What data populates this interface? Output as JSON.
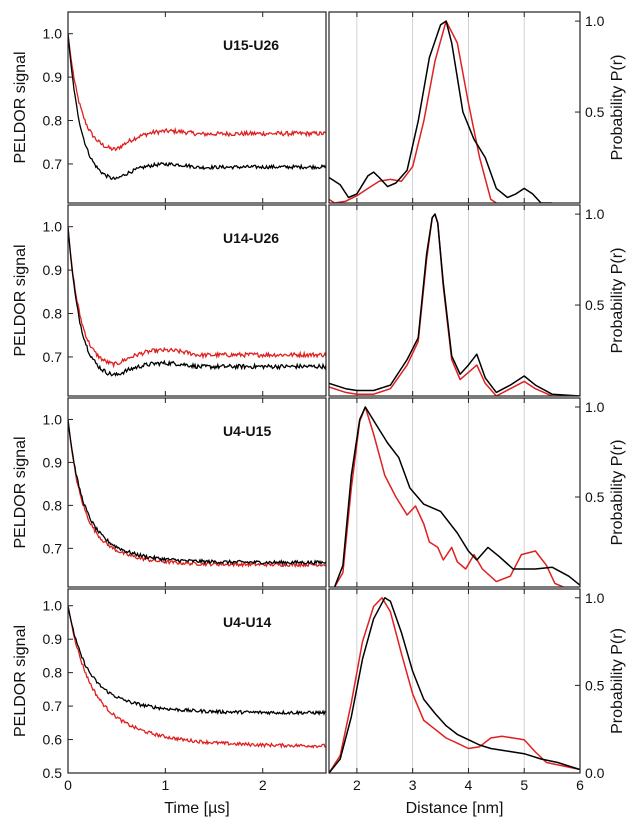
{
  "chart_data": [
    {
      "type": "line",
      "panel": "time",
      "row": 0,
      "label": "U15-U26",
      "xlabel": "",
      "ylabel": "PELDOR signal",
      "xlim": [
        0,
        2.65
      ],
      "ylim": [
        0.61,
        1.05
      ],
      "yticks": [
        0.7,
        0.8,
        0.9,
        1.0
      ],
      "yticklabels": [
        "0.7",
        "0.8",
        "0.9",
        "1.0"
      ],
      "xticks": [
        0,
        1,
        2
      ],
      "xticklabels": [],
      "series": [
        {
          "color": "#e02020",
          "shape": "decay",
          "start": 1.0,
          "floor": 0.725,
          "bump": 0.02,
          "plateau": 0.77,
          "rate": 7.5,
          "noise": 0.005
        },
        {
          "color": "#000000",
          "shape": "decay",
          "start": 1.0,
          "floor": 0.655,
          "bump": 0.02,
          "plateau": 0.693,
          "rate": 7.5,
          "noise": 0.004
        }
      ]
    },
    {
      "type": "line",
      "panel": "distance",
      "row": 0,
      "xlabel": "",
      "ylabel": "Probability P(r)",
      "xlim": [
        1.5,
        6
      ],
      "ylim": [
        0,
        1.05
      ],
      "yticks": [
        0.5,
        1.0
      ],
      "yticklabels": [
        "0.5",
        "1.0"
      ],
      "xticks": [
        2,
        3,
        4,
        5
      ],
      "xticklabels": [],
      "series": [
        {
          "color": "#e02020",
          "points": [
            [
              1.5,
              0.02
            ],
            [
              1.6,
              0.0
            ],
            [
              1.8,
              0.01
            ],
            [
              2.0,
              0.04
            ],
            [
              2.2,
              0.08
            ],
            [
              2.4,
              0.12
            ],
            [
              2.6,
              0.13
            ],
            [
              2.8,
              0.12
            ],
            [
              3.0,
              0.2
            ],
            [
              3.2,
              0.45
            ],
            [
              3.4,
              0.78
            ],
            [
              3.6,
              1.0
            ],
            [
              3.8,
              0.88
            ],
            [
              4.0,
              0.55
            ],
            [
              4.2,
              0.25
            ],
            [
              4.4,
              0.02
            ],
            [
              4.5,
              0.0
            ]
          ]
        },
        {
          "color": "#000000",
          "points": [
            [
              1.5,
              0.14
            ],
            [
              1.7,
              0.1
            ],
            [
              1.85,
              0.03
            ],
            [
              2.0,
              0.05
            ],
            [
              2.2,
              0.15
            ],
            [
              2.3,
              0.17
            ],
            [
              2.4,
              0.14
            ],
            [
              2.55,
              0.09
            ],
            [
              2.7,
              0.11
            ],
            [
              2.9,
              0.18
            ],
            [
              3.1,
              0.45
            ],
            [
              3.3,
              0.8
            ],
            [
              3.5,
              0.98
            ],
            [
              3.6,
              1.0
            ],
            [
              3.7,
              0.88
            ],
            [
              3.9,
              0.5
            ],
            [
              4.1,
              0.35
            ],
            [
              4.3,
              0.25
            ],
            [
              4.5,
              0.08
            ],
            [
              4.7,
              0.03
            ],
            [
              4.85,
              0.05
            ],
            [
              5.0,
              0.08
            ],
            [
              5.15,
              0.05
            ],
            [
              5.3,
              0.0
            ],
            [
              5.5,
              0.0
            ]
          ]
        }
      ]
    },
    {
      "type": "line",
      "panel": "time",
      "row": 1,
      "label": "U14-U26",
      "xlabel": "",
      "ylabel": "PELDOR signal",
      "xlim": [
        0,
        2.65
      ],
      "ylim": [
        0.61,
        1.05
      ],
      "yticks": [
        0.7,
        0.8,
        0.9,
        1.0
      ],
      "yticklabels": [
        "0.7",
        "0.8",
        "0.9",
        "1.0"
      ],
      "xticks": [
        0,
        1,
        2
      ],
      "xticklabels": [],
      "series": [
        {
          "color": "#e02020",
          "shape": "decay",
          "start": 1.0,
          "floor": 0.675,
          "bump": 0.025,
          "plateau": 0.705,
          "rate": 8,
          "noise": 0.005
        },
        {
          "color": "#000000",
          "shape": "decay",
          "start": 1.0,
          "floor": 0.65,
          "bump": 0.02,
          "plateau": 0.678,
          "rate": 8,
          "noise": 0.005
        }
      ]
    },
    {
      "type": "line",
      "panel": "distance",
      "row": 1,
      "xlabel": "",
      "ylabel": "Probability P(r)",
      "xlim": [
        1.5,
        6
      ],
      "ylim": [
        0,
        1.05
      ],
      "yticks": [
        0.5,
        1.0
      ],
      "yticklabels": [
        "0.5",
        "1.0"
      ],
      "xticks": [
        2,
        3,
        4,
        5
      ],
      "xticklabels": [],
      "series": [
        {
          "color": "#e02020",
          "points": [
            [
              1.5,
              0.05
            ],
            [
              1.8,
              0.02
            ],
            [
              2.0,
              0.01
            ],
            [
              2.3,
              0.01
            ],
            [
              2.6,
              0.04
            ],
            [
              2.9,
              0.17
            ],
            [
              3.1,
              0.3
            ],
            [
              3.25,
              0.75
            ],
            [
              3.35,
              0.98
            ],
            [
              3.4,
              1.0
            ],
            [
              3.45,
              0.95
            ],
            [
              3.55,
              0.6
            ],
            [
              3.7,
              0.2
            ],
            [
              3.85,
              0.09
            ],
            [
              4.0,
              0.13
            ],
            [
              4.15,
              0.17
            ],
            [
              4.3,
              0.07
            ],
            [
              4.5,
              0.0
            ],
            [
              4.75,
              0.04
            ],
            [
              5.0,
              0.08
            ],
            [
              5.2,
              0.04
            ],
            [
              5.5,
              0.0
            ],
            [
              6.0,
              0.0
            ]
          ]
        },
        {
          "color": "#000000",
          "points": [
            [
              1.5,
              0.07
            ],
            [
              1.8,
              0.04
            ],
            [
              2.0,
              0.03
            ],
            [
              2.3,
              0.03
            ],
            [
              2.6,
              0.06
            ],
            [
              2.9,
              0.2
            ],
            [
              3.1,
              0.32
            ],
            [
              3.25,
              0.78
            ],
            [
              3.35,
              0.98
            ],
            [
              3.4,
              1.0
            ],
            [
              3.45,
              0.95
            ],
            [
              3.55,
              0.62
            ],
            [
              3.7,
              0.22
            ],
            [
              3.85,
              0.12
            ],
            [
              4.0,
              0.17
            ],
            [
              4.15,
              0.23
            ],
            [
              4.3,
              0.1
            ],
            [
              4.5,
              0.02
            ],
            [
              4.75,
              0.06
            ],
            [
              5.0,
              0.11
            ],
            [
              5.2,
              0.06
            ],
            [
              5.5,
              0.01
            ],
            [
              6.0,
              0.0
            ]
          ]
        }
      ]
    },
    {
      "type": "line",
      "panel": "time",
      "row": 2,
      "label": "U4-U15",
      "xlabel": "",
      "ylabel": "PELDOR signal",
      "xlim": [
        0,
        2.65
      ],
      "ylim": [
        0.61,
        1.05
      ],
      "yticks": [
        0.7,
        0.8,
        0.9,
        1.0
      ],
      "yticklabels": [
        "0.7",
        "0.8",
        "0.9",
        "1.0"
      ],
      "xticks": [
        0,
        1,
        2
      ],
      "xticklabels": [],
      "series": [
        {
          "color": "#e02020",
          "shape": "fastdecay",
          "start": 1.0,
          "plateau": 0.662,
          "rate": 9,
          "noise": 0.004
        },
        {
          "color": "#000000",
          "shape": "fastdecay",
          "start": 1.0,
          "plateau": 0.667,
          "rate": 8.5,
          "noise": 0.004
        }
      ]
    },
    {
      "type": "line",
      "panel": "distance",
      "row": 2,
      "xlabel": "",
      "ylabel": "Probability P(r)",
      "xlim": [
        1.5,
        6
      ],
      "ylim": [
        0,
        1.05
      ],
      "yticks": [
        0.5,
        1.0
      ],
      "yticklabels": [
        "0.5",
        "1.0"
      ],
      "xticks": [
        2,
        3,
        4,
        5
      ],
      "xticklabels": [],
      "series": [
        {
          "color": "#e02020",
          "points": [
            [
              1.6,
              0.0
            ],
            [
              1.75,
              0.08
            ],
            [
              1.9,
              0.55
            ],
            [
              2.05,
              0.92
            ],
            [
              2.15,
              1.0
            ],
            [
              2.3,
              0.85
            ],
            [
              2.5,
              0.62
            ],
            [
              2.7,
              0.5
            ],
            [
              2.9,
              0.4
            ],
            [
              3.05,
              0.45
            ],
            [
              3.2,
              0.35
            ],
            [
              3.3,
              0.25
            ],
            [
              3.45,
              0.22
            ],
            [
              3.55,
              0.15
            ],
            [
              3.7,
              0.22
            ],
            [
              3.8,
              0.14
            ],
            [
              3.95,
              0.1
            ],
            [
              4.1,
              0.18
            ],
            [
              4.25,
              0.1
            ],
            [
              4.5,
              0.03
            ],
            [
              4.75,
              0.06
            ],
            [
              4.95,
              0.18
            ],
            [
              5.2,
              0.2
            ],
            [
              5.4,
              0.12
            ],
            [
              5.55,
              0.02
            ],
            [
              5.7,
              0.0
            ]
          ]
        },
        {
          "color": "#000000",
          "points": [
            [
              1.6,
              0.0
            ],
            [
              1.75,
              0.12
            ],
            [
              1.9,
              0.62
            ],
            [
              2.05,
              0.93
            ],
            [
              2.15,
              1.0
            ],
            [
              2.35,
              0.9
            ],
            [
              2.55,
              0.8
            ],
            [
              2.75,
              0.72
            ],
            [
              2.95,
              0.55
            ],
            [
              3.2,
              0.46
            ],
            [
              3.5,
              0.42
            ],
            [
              3.8,
              0.3
            ],
            [
              4.0,
              0.2
            ],
            [
              4.15,
              0.15
            ],
            [
              4.35,
              0.22
            ],
            [
              4.55,
              0.17
            ],
            [
              4.8,
              0.1
            ],
            [
              5.2,
              0.1
            ],
            [
              5.5,
              0.11
            ],
            [
              5.8,
              0.06
            ],
            [
              6.0,
              0.01
            ]
          ]
        }
      ]
    },
    {
      "type": "line",
      "panel": "time",
      "row": 3,
      "label": "U4-U14",
      "xlabel": "Time [µs]",
      "ylabel": "PELDOR signal",
      "xlim": [
        0,
        2.65
      ],
      "ylim": [
        0.5,
        1.05
      ],
      "yticks": [
        0.5,
        0.6,
        0.7,
        0.8,
        0.9,
        1.0
      ],
      "yticklabels": [
        "0.5",
        "0.6",
        "0.7",
        "0.8",
        "0.9",
        "1.0"
      ],
      "xticks": [
        0,
        1,
        2
      ],
      "xticklabels": [
        "0",
        "1",
        "2"
      ],
      "series": [
        {
          "color": "#e02020",
          "shape": "fastdecay",
          "start": 1.0,
          "plateau": 0.58,
          "rate": 5.5,
          "noise": 0.005
        },
        {
          "color": "#000000",
          "shape": "fastdecay",
          "start": 1.0,
          "plateau": 0.68,
          "rate": 7,
          "noise": 0.005
        }
      ]
    },
    {
      "type": "line",
      "panel": "distance",
      "row": 3,
      "xlabel": "Distance [nm]",
      "ylabel": "Probability P(r)",
      "xlim": [
        1.5,
        6
      ],
      "ylim": [
        0,
        1.05
      ],
      "yticks": [
        0.0,
        0.5,
        1.0
      ],
      "yticklabels": [
        "0.0",
        "0.5",
        "1.0"
      ],
      "xticks": [
        2,
        3,
        4,
        5,
        6
      ],
      "xticklabels": [
        "2",
        "3",
        "4",
        "5",
        "6"
      ],
      "series": [
        {
          "color": "#e02020",
          "points": [
            [
              1.5,
              0.0
            ],
            [
              1.7,
              0.1
            ],
            [
              1.9,
              0.4
            ],
            [
              2.1,
              0.75
            ],
            [
              2.3,
              0.95
            ],
            [
              2.45,
              1.0
            ],
            [
              2.6,
              0.92
            ],
            [
              2.8,
              0.68
            ],
            [
              3.0,
              0.45
            ],
            [
              3.2,
              0.3
            ],
            [
              3.4,
              0.25
            ],
            [
              3.6,
              0.2
            ],
            [
              3.8,
              0.17
            ],
            [
              4.0,
              0.14
            ],
            [
              4.2,
              0.15
            ],
            [
              4.4,
              0.2
            ],
            [
              4.6,
              0.21
            ],
            [
              4.8,
              0.2
            ],
            [
              5.0,
              0.19
            ],
            [
              5.2,
              0.12
            ],
            [
              5.4,
              0.06
            ],
            [
              5.7,
              0.04
            ],
            [
              6.0,
              0.02
            ]
          ]
        },
        {
          "color": "#000000",
          "points": [
            [
              1.5,
              0.0
            ],
            [
              1.7,
              0.08
            ],
            [
              1.9,
              0.32
            ],
            [
              2.1,
              0.65
            ],
            [
              2.3,
              0.88
            ],
            [
              2.5,
              1.0
            ],
            [
              2.6,
              0.98
            ],
            [
              2.8,
              0.8
            ],
            [
              3.0,
              0.58
            ],
            [
              3.2,
              0.42
            ],
            [
              3.4,
              0.34
            ],
            [
              3.6,
              0.27
            ],
            [
              3.8,
              0.22
            ],
            [
              4.0,
              0.19
            ],
            [
              4.2,
              0.16
            ],
            [
              4.4,
              0.14
            ],
            [
              4.6,
              0.13
            ],
            [
              4.8,
              0.12
            ],
            [
              5.0,
              0.11
            ],
            [
              5.3,
              0.08
            ],
            [
              5.6,
              0.06
            ],
            [
              6.0,
              0.02
            ]
          ]
        }
      ]
    }
  ]
}
